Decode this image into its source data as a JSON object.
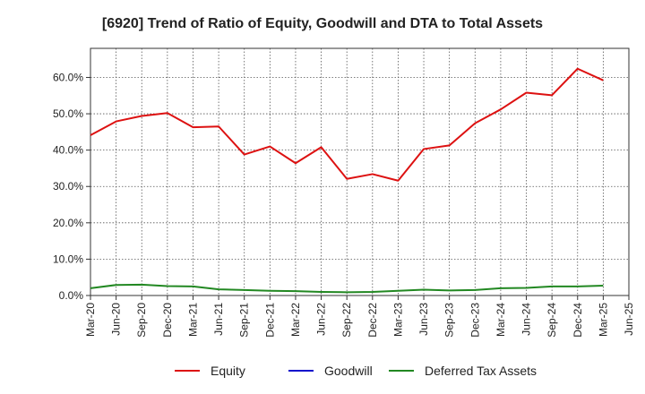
{
  "chart_data": {
    "type": "line",
    "title": "[6920]  Trend of Ratio of Equity, Goodwill and DTA to Total Assets",
    "xlabel": "",
    "ylabel": "",
    "x": [
      "Mar-20",
      "Jun-20",
      "Sep-20",
      "Dec-20",
      "Mar-21",
      "Jun-21",
      "Sep-21",
      "Dec-21",
      "Mar-22",
      "Jun-22",
      "Sep-22",
      "Dec-22",
      "Mar-23",
      "Jun-23",
      "Sep-23",
      "Dec-23",
      "Mar-24",
      "Jun-24",
      "Sep-24",
      "Dec-24",
      "Mar-25",
      "Jun-25"
    ],
    "ylim": [
      0,
      0.68
    ],
    "yticks": [
      0,
      0.1,
      0.2,
      0.3,
      0.4,
      0.5,
      0.6
    ],
    "ytick_labels": [
      "0.0%",
      "10.0%",
      "20.0%",
      "30.0%",
      "40.0%",
      "50.0%",
      "60.0%"
    ],
    "grid": true,
    "legend_position": "bottom",
    "series": [
      {
        "name": "Equity",
        "color": "#dd1111",
        "values": [
          0.441,
          0.479,
          0.494,
          0.502,
          0.463,
          0.465,
          0.388,
          0.41,
          0.364,
          0.408,
          0.321,
          0.334,
          0.316,
          0.403,
          0.413,
          0.474,
          0.512,
          0.558,
          0.551,
          0.624,
          0.592,
          null
        ]
      },
      {
        "name": "Goodwill",
        "color": "#1111cc",
        "values": [
          null,
          null,
          null,
          null,
          null,
          null,
          null,
          null,
          null,
          null,
          null,
          null,
          null,
          null,
          null,
          null,
          null,
          null,
          null,
          null,
          null,
          null
        ]
      },
      {
        "name": "Deferred Tax Assets",
        "color": "#228822",
        "values": [
          0.02,
          0.029,
          0.03,
          0.026,
          0.025,
          0.017,
          0.015,
          0.013,
          0.012,
          0.01,
          0.009,
          0.01,
          0.013,
          0.016,
          0.014,
          0.015,
          0.02,
          0.021,
          0.025,
          0.025,
          0.027,
          null
        ]
      }
    ]
  }
}
